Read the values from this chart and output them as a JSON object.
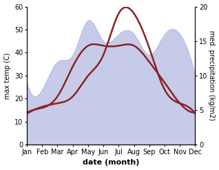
{
  "months": [
    "Jan",
    "Feb",
    "Mar",
    "Apr",
    "May",
    "Jun",
    "Jul",
    "Aug",
    "Sep",
    "Oct",
    "Nov",
    "Dec"
  ],
  "temp_line": [
    14,
    16,
    21,
    34,
    43,
    43,
    43,
    43,
    36,
    27,
    18,
    14
  ],
  "precip_fill_kg": [
    9,
    8,
    12,
    13,
    18,
    15,
    16,
    16,
    13,
    16,
    16,
    10
  ],
  "precip_line_kg": [
    4.5,
    5.5,
    6,
    7,
    10,
    13,
    19,
    19,
    14,
    8,
    6,
    4.5
  ],
  "temp_ylim": [
    0,
    60
  ],
  "precip_ylim": [
    0,
    20
  ],
  "temp_scale_factor": 3.0,
  "xlabel": "date (month)",
  "ylabel_left": "max temp (C)",
  "ylabel_right": "med. precipitation (kg/m2)",
  "fill_color": "#aab0e0",
  "fill_alpha": 0.65,
  "line_color": "#8b2222",
  "line_width": 1.8,
  "background_color": "#ffffff",
  "title_fontsize": 8,
  "axis_fontsize": 7,
  "xlabel_fontsize": 8
}
